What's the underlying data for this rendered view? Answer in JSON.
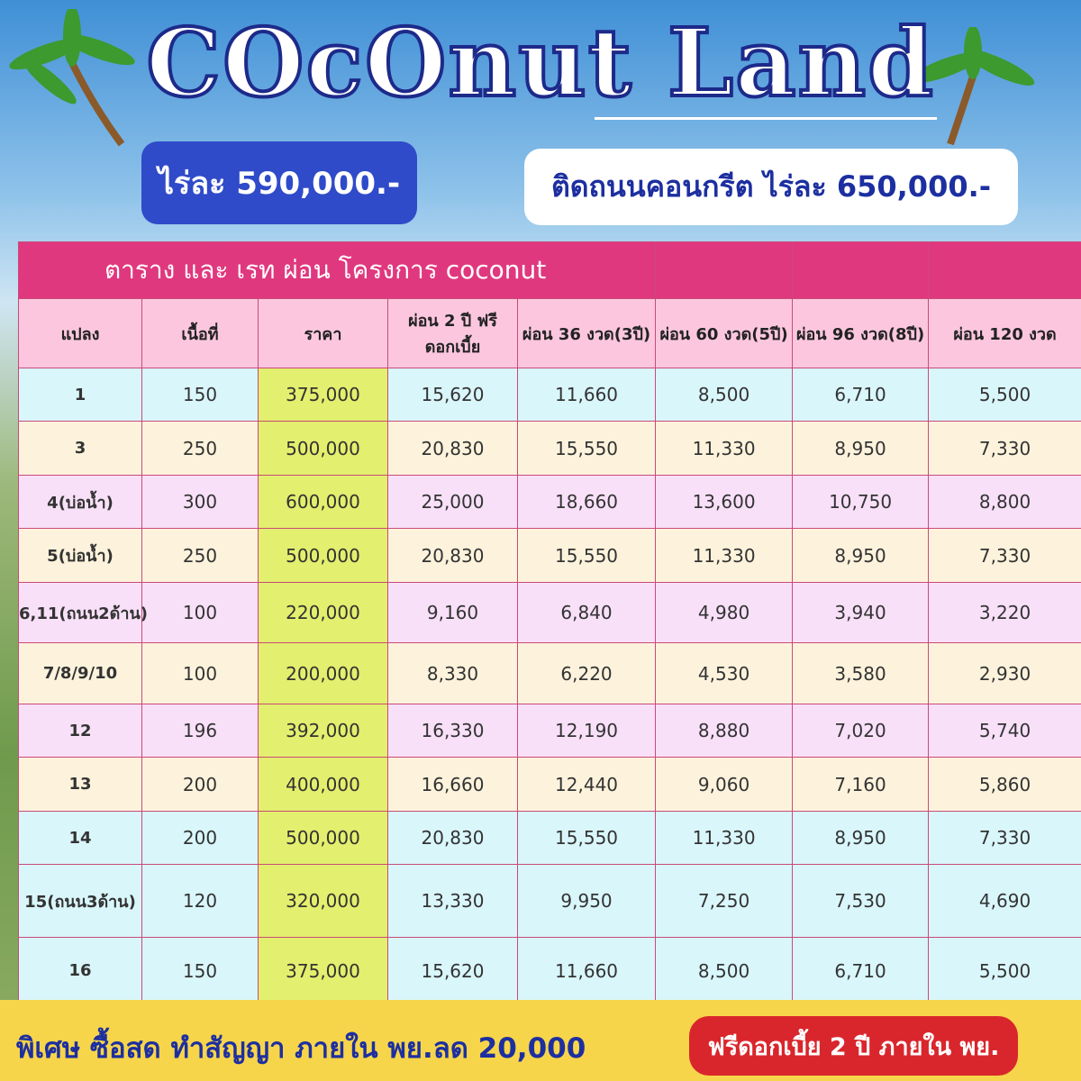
{
  "header": {
    "title": "COcOnut Land",
    "price_badge": "ไร่ละ 590,000.-",
    "concrete_badge": "ติดถนนคอนกรีต ไร่ละ 650,000.-"
  },
  "table": {
    "title": "ตาราง และ เรท ผ่อน โครงการ coconut",
    "columns": [
      "แปลง",
      "เนื้อที่",
      "ราคา",
      "ผ่อน 2 ปี ฟรี ดอกเบี้ย",
      "ผ่อน 36 งวด(3ปี)",
      "ผ่อน 60 งวด(5ปี)",
      "ผ่อน 96 งวด(8ปี)",
      "ผ่อน 120 งวด"
    ],
    "rows": [
      [
        "1",
        "150",
        "375,000",
        "15,620",
        "11,660",
        "8,500",
        "6,710",
        "5,500"
      ],
      [
        "3",
        "250",
        "500,000",
        "20,830",
        "15,550",
        "11,330",
        "8,950",
        "7,330"
      ],
      [
        "4(บ่อน้ำ)",
        "300",
        "600,000",
        "25,000",
        "18,660",
        "13,600",
        "10,750",
        "8,800"
      ],
      [
        "5(บ่อน้ำ)",
        "250",
        "500,000",
        "20,830",
        "15,550",
        "11,330",
        "8,950",
        "7,330"
      ],
      [
        "6,11(ถนน2ด้าน)",
        "100",
        "220,000",
        "9,160",
        "6,840",
        "4,980",
        "3,940",
        "3,220"
      ],
      [
        "7/8/9/10",
        "100",
        "200,000",
        "8,330",
        "6,220",
        "4,530",
        "3,580",
        "2,930"
      ],
      [
        "12",
        "196",
        "392,000",
        "16,330",
        "12,190",
        "8,880",
        "7,020",
        "5,740"
      ],
      [
        "13",
        "200",
        "400,000",
        "16,660",
        "12,440",
        "9,060",
        "7,160",
        "5,860"
      ],
      [
        "14",
        "200",
        "500,000",
        "20,830",
        "15,550",
        "11,330",
        "8,950",
        "7,330"
      ],
      [
        "15(ถนน3ด้าน)",
        "120",
        "320,000",
        "13,330",
        "9,950",
        "7,250",
        "7,530",
        "4,690"
      ],
      [
        "16",
        "150",
        "375,000",
        "15,620",
        "11,660",
        "8,500",
        "6,710",
        "5,500"
      ]
    ]
  },
  "footer": {
    "promo": "พิเศษ ซื้อสด  ทำสัญญา ภายใน พย.ลด 20,000",
    "free_interest": "ฟรีดอกเบี้ย 2 ปี ภายใน พย."
  }
}
